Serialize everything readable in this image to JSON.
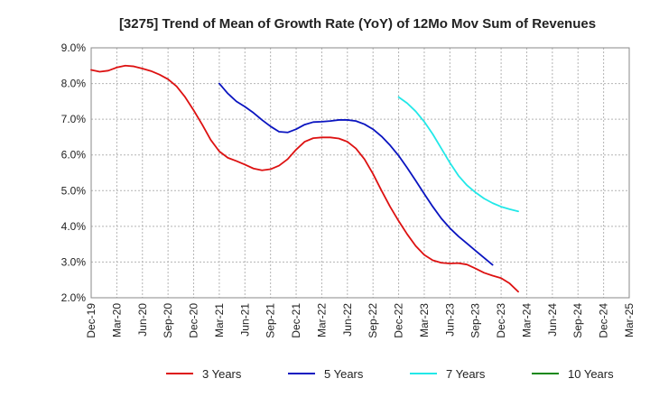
{
  "chart_data": {
    "type": "line",
    "title": "[3275]  Trend of Mean of Growth Rate (YoY) of 12Mo Mov Sum of Revenues",
    "xlabel": "",
    "ylabel": "",
    "ylim": [
      2.0,
      9.0
    ],
    "y_ticks": [
      "9.0%",
      "8.0%",
      "7.0%",
      "6.0%",
      "5.0%",
      "4.0%",
      "3.0%",
      "2.0%"
    ],
    "x_ticks": [
      "Dec-19",
      "Mar-20",
      "Jun-20",
      "Sep-20",
      "Dec-20",
      "Mar-21",
      "Jun-21",
      "Sep-21",
      "Dec-21",
      "Mar-22",
      "Jun-22",
      "Sep-22",
      "Dec-22",
      "Mar-23",
      "Jun-23",
      "Sep-23",
      "Dec-23",
      "Mar-24",
      "Jun-24",
      "Sep-24",
      "Dec-24",
      "Mar-25"
    ],
    "grid": true,
    "legend_position": "bottom",
    "series": [
      {
        "name": "3 Years",
        "color": "#dd1111",
        "start_index": 0,
        "values": [
          8.38,
          8.33,
          8.36,
          8.45,
          8.5,
          8.48,
          8.42,
          8.35,
          8.25,
          8.12,
          7.92,
          7.62,
          7.25,
          6.85,
          6.42,
          6.1,
          5.92,
          5.83,
          5.73,
          5.62,
          5.57,
          5.6,
          5.7,
          5.88,
          6.15,
          6.37,
          6.47,
          6.49,
          6.49,
          6.46,
          6.37,
          6.18,
          5.88,
          5.47,
          5.0,
          4.55,
          4.15,
          3.78,
          3.45,
          3.2,
          3.05,
          2.98,
          2.96,
          2.97,
          2.93,
          2.82,
          2.7,
          2.62,
          2.55,
          2.4,
          2.17
        ]
      },
      {
        "name": "5 Years",
        "color": "#0a14c0",
        "start_index": 15,
        "values": [
          8.0,
          7.72,
          7.5,
          7.35,
          7.18,
          6.98,
          6.8,
          6.65,
          6.63,
          6.72,
          6.85,
          6.92,
          6.93,
          6.95,
          6.98,
          6.98,
          6.95,
          6.86,
          6.72,
          6.52,
          6.27,
          5.98,
          5.64,
          5.28,
          4.91,
          4.55,
          4.22,
          3.95,
          3.72,
          3.52,
          3.32,
          3.12,
          2.92
        ]
      },
      {
        "name": "7 Years",
        "color": "#22e8e8",
        "start_index": 36,
        "values": [
          7.62,
          7.45,
          7.22,
          6.93,
          6.58,
          6.18,
          5.78,
          5.42,
          5.15,
          4.95,
          4.78,
          4.65,
          4.55,
          4.48,
          4.42
        ]
      },
      {
        "name": "10 Years",
        "color": "#118811",
        "start_index": 0,
        "values": []
      }
    ]
  }
}
